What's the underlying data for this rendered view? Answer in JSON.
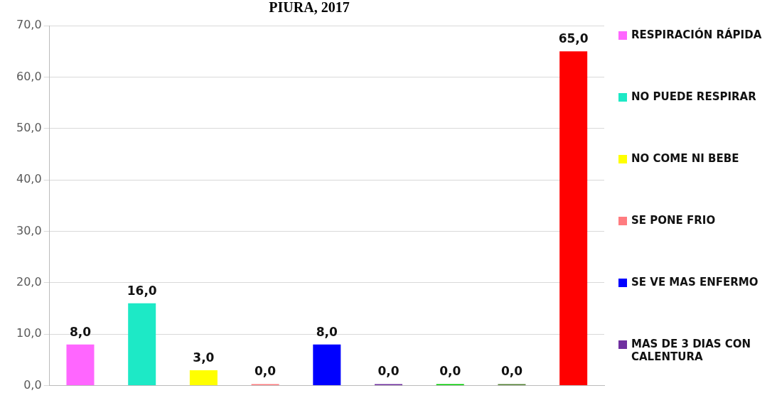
{
  "chart_data": {
    "type": "bar",
    "title": "PIURA, 2017",
    "categories": [
      null,
      null,
      null,
      null,
      null,
      null,
      null,
      null,
      null
    ],
    "series": [
      {
        "name": "RESPIRACIÓN RÁPIDA",
        "color": "#ff66ff",
        "values": [
          8,
          null,
          null,
          null,
          null,
          null,
          null,
          null,
          null
        ],
        "value_labels": [
          "8,0",
          null,
          null,
          null,
          null,
          null,
          null,
          null,
          null
        ]
      },
      {
        "name": "NO PUEDE RESPIRAR",
        "color": "#1de9c6",
        "values": [
          null,
          16,
          null,
          null,
          null,
          null,
          null,
          null,
          null
        ],
        "value_labels": [
          null,
          "16,0",
          null,
          null,
          null,
          null,
          null,
          null,
          null
        ]
      },
      {
        "name": "NO COME NI BEBE",
        "color": "#ffff00",
        "values": [
          null,
          null,
          3,
          null,
          null,
          null,
          null,
          null,
          null
        ],
        "value_labels": [
          null,
          null,
          "3,0",
          null,
          null,
          null,
          null,
          null,
          null
        ]
      },
      {
        "name": "SE PONE FRIO",
        "color": "#ff7c80",
        "values": [
          null,
          null,
          null,
          0,
          null,
          null,
          null,
          null,
          null
        ],
        "value_labels": [
          null,
          null,
          null,
          "0,0",
          null,
          null,
          null,
          null,
          null
        ]
      },
      {
        "name": "SE VE MAS ENFERMO",
        "color": "#0000ff",
        "values": [
          null,
          null,
          null,
          null,
          8,
          null,
          null,
          null,
          null
        ],
        "value_labels": [
          null,
          null,
          null,
          null,
          "8,0",
          null,
          null,
          null,
          null
        ]
      },
      {
        "name": "MAS DE 3 DIAS CON CALENTURA",
        "color": "#7030a0",
        "values": [
          null,
          null,
          null,
          null,
          null,
          0,
          null,
          null,
          null
        ],
        "value_labels": [
          null,
          null,
          null,
          null,
          null,
          "0,0",
          null,
          null,
          null
        ]
      },
      {
        "color": "#00cc00",
        "values": [
          null,
          null,
          null,
          null,
          null,
          null,
          0,
          null,
          null
        ],
        "value_labels": [
          null,
          null,
          null,
          null,
          null,
          null,
          "0,0",
          null,
          null
        ]
      },
      {
        "color": "#548235",
        "values": [
          null,
          null,
          null,
          null,
          null,
          null,
          null,
          0,
          null
        ],
        "value_labels": [
          null,
          null,
          null,
          null,
          null,
          null,
          null,
          "0,0",
          null
        ]
      },
      {
        "color": "#ff0000",
        "values": [
          null,
          null,
          null,
          null,
          null,
          null,
          null,
          null,
          65
        ],
        "value_labels": [
          null,
          null,
          null,
          null,
          null,
          null,
          null,
          null,
          "65,0"
        ]
      }
    ],
    "ylim": [
      0,
      70
    ],
    "yticks": [
      {
        "value": 0,
        "label": "0,0"
      },
      {
        "value": 10,
        "label": "10,0"
      },
      {
        "value": 20,
        "label": "20,0"
      },
      {
        "value": 30,
        "label": "30,0"
      },
      {
        "value": 40,
        "label": "40,0"
      },
      {
        "value": 50,
        "label": "50,0"
      },
      {
        "value": 60,
        "label": "60,0"
      },
      {
        "value": 70,
        "label": "70,0"
      }
    ],
    "grid": "y",
    "legend": "right"
  }
}
